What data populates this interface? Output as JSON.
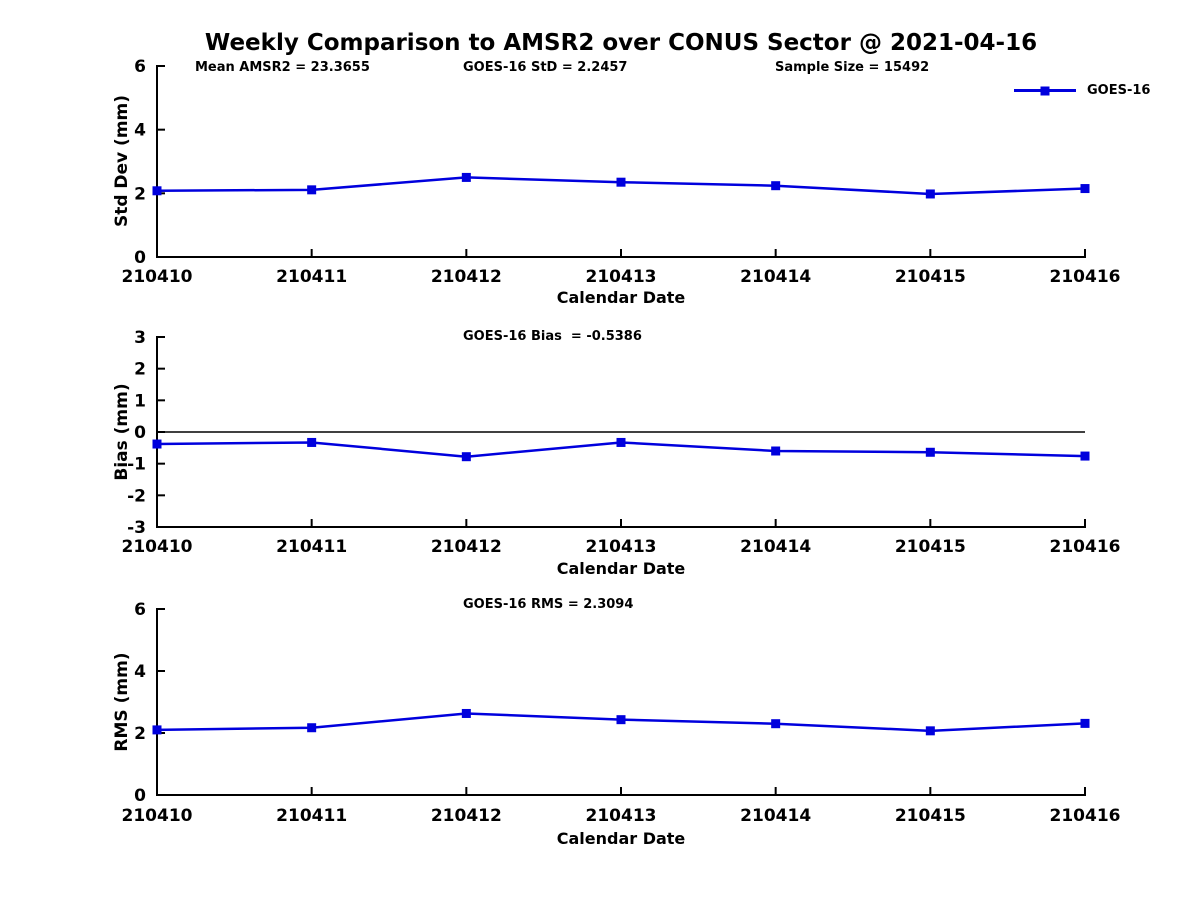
{
  "title": "Weekly Comparison to AMSR2 over CONUS Sector @ 2021-04-16",
  "legend": {
    "label": "GOES-16"
  },
  "colors": {
    "series": "#0000dd",
    "axis": "#000000",
    "text": "#000000",
    "background": "#ffffff"
  },
  "chart_data": [
    {
      "type": "line",
      "ylabel": "Std Dev (mm)",
      "xlabel": "Calendar Date",
      "categories": [
        "210410",
        "210411",
        "210412",
        "210413",
        "210414",
        "210415",
        "210416"
      ],
      "series": [
        {
          "name": "GOES-16",
          "values": [
            2.08,
            2.11,
            2.5,
            2.35,
            2.24,
            1.98,
            2.15
          ]
        }
      ],
      "ylim": [
        0,
        6
      ],
      "yticks": [
        0,
        2,
        4,
        6
      ],
      "zero_line": false,
      "grid": false,
      "legend_position": "upper right",
      "annotations": [
        "Mean AMSR2 = 23.3655",
        "GOES-16 StD = 2.2457",
        "Sample Size = 15492"
      ]
    },
    {
      "type": "line",
      "ylabel": "Bias (mm)",
      "xlabel": "Calendar Date",
      "categories": [
        "210410",
        "210411",
        "210412",
        "210413",
        "210414",
        "210415",
        "210416"
      ],
      "series": [
        {
          "name": "GOES-16",
          "values": [
            -0.38,
            -0.33,
            -0.78,
            -0.33,
            -0.6,
            -0.64,
            -0.76
          ]
        }
      ],
      "ylim": [
        -3,
        3
      ],
      "yticks": [
        -3,
        -2,
        -1,
        0,
        1,
        2,
        3
      ],
      "zero_line": true,
      "grid": false,
      "legend_position": "none",
      "annotations": [
        "GOES-16 Bias  = -0.5386"
      ]
    },
    {
      "type": "line",
      "ylabel": "RMS (mm)",
      "xlabel": "Calendar Date",
      "categories": [
        "210410",
        "210411",
        "210412",
        "210413",
        "210414",
        "210415",
        "210416"
      ],
      "series": [
        {
          "name": "GOES-16",
          "values": [
            2.1,
            2.17,
            2.63,
            2.43,
            2.3,
            2.07,
            2.31
          ]
        }
      ],
      "ylim": [
        0,
        6
      ],
      "yticks": [
        0,
        2,
        4,
        6
      ],
      "zero_line": false,
      "grid": false,
      "legend_position": "none",
      "annotations": [
        "GOES-16 RMS = 2.3094"
      ]
    }
  ]
}
